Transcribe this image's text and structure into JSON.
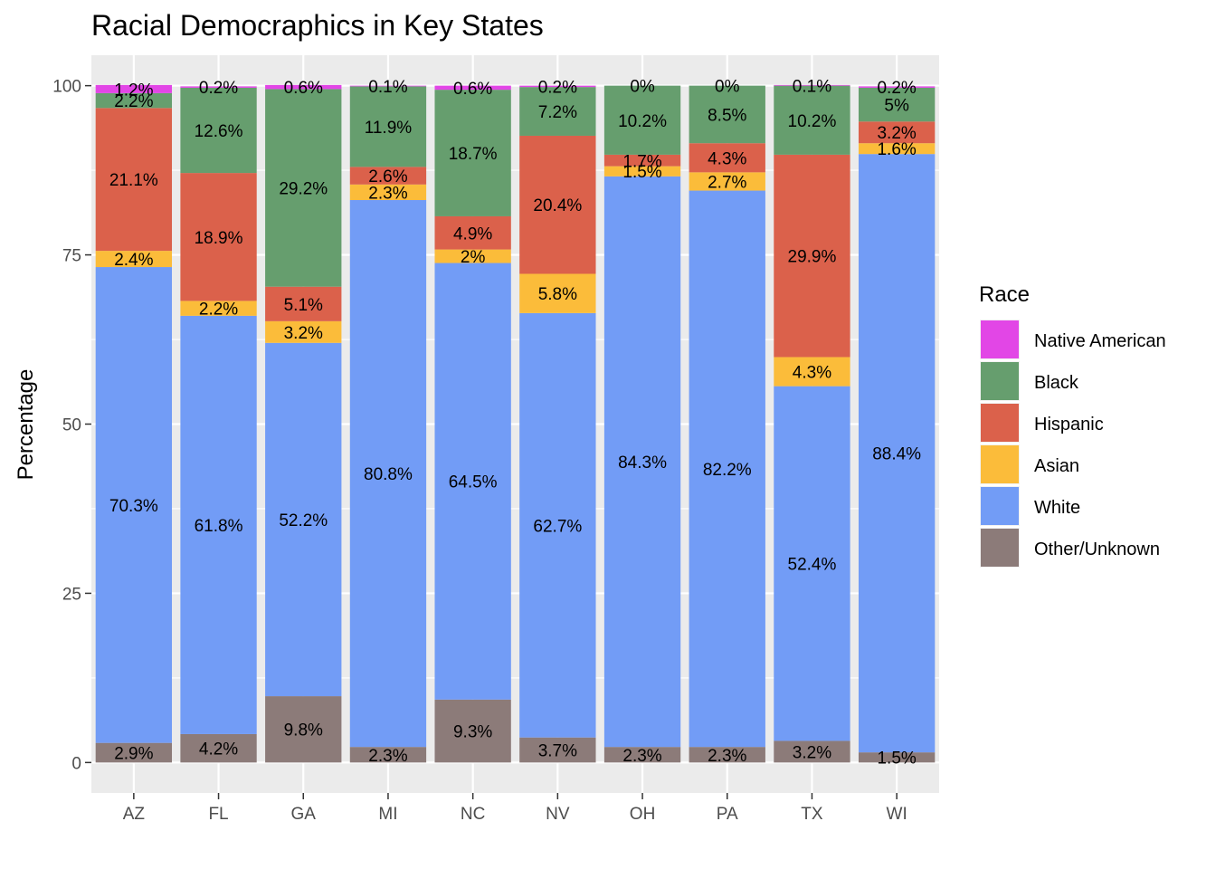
{
  "chart_data": {
    "type": "bar",
    "stacked": true,
    "title": "Racial Democraphics in Key States",
    "xlabel": "",
    "ylabel": "Percentage",
    "ylim": [
      -4.5,
      104.5
    ],
    "yticks": [
      0,
      25,
      50,
      75,
      100
    ],
    "grid": true,
    "legend_position": "right",
    "legend_title": "Race",
    "categories": [
      "AZ",
      "FL",
      "GA",
      "MI",
      "NC",
      "NV",
      "OH",
      "PA",
      "TX",
      "WI"
    ],
    "series": [
      {
        "name": "Other/Unknown",
        "color": "#8c7b79",
        "values": [
          2.9,
          4.2,
          9.8,
          2.3,
          9.3,
          3.7,
          2.3,
          2.3,
          3.2,
          1.5
        ],
        "labels": [
          "2.9%",
          "4.2%",
          "9.8%",
          "2.3%",
          "9.3%",
          "3.7%",
          "2.3%",
          "2.3%",
          "3.2%",
          "1.5%"
        ]
      },
      {
        "name": "White",
        "color": "#729cf6",
        "values": [
          70.3,
          61.8,
          52.2,
          80.8,
          64.5,
          62.7,
          84.3,
          82.2,
          52.4,
          88.4
        ],
        "labels": [
          "70.3%",
          "61.8%",
          "52.2%",
          "80.8%",
          "64.5%",
          "62.7%",
          "84.3%",
          "82.2%",
          "52.4%",
          "88.4%"
        ]
      },
      {
        "name": "Asian",
        "color": "#fbbc3a",
        "values": [
          2.4,
          2.2,
          3.2,
          2.3,
          2,
          5.8,
          1.5,
          2.7,
          4.3,
          1.6
        ],
        "labels": [
          "2.4%",
          "2.2%",
          "3.2%",
          "2.3%",
          "2%",
          "5.8%",
          "1.5%",
          "2.7%",
          "4.3%",
          "1.6%"
        ]
      },
      {
        "name": "Hispanic",
        "color": "#db614b",
        "values": [
          21.1,
          18.9,
          5.1,
          2.6,
          4.9,
          20.4,
          1.7,
          4.3,
          29.9,
          3.2
        ],
        "labels": [
          "21.1%",
          "18.9%",
          "5.1%",
          "2.6%",
          "4.9%",
          "20.4%",
          "1.7%",
          "4.3%",
          "29.9%",
          "3.2%"
        ]
      },
      {
        "name": "Black",
        "color": "#669e6e",
        "values": [
          2.2,
          12.6,
          29.2,
          11.9,
          18.7,
          7.2,
          10.2,
          8.5,
          10.2,
          5
        ],
        "labels": [
          "2.2%",
          "12.6%",
          "29.2%",
          "11.9%",
          "18.7%",
          "7.2%",
          "10.2%",
          "8.5%",
          "10.2%",
          "5%"
        ]
      },
      {
        "name": "Native American",
        "color": "#e246e6",
        "values": [
          1.2,
          0.2,
          0.6,
          0.1,
          0.6,
          0.2,
          0,
          0,
          0.1,
          0.2
        ],
        "labels": [
          "1.2%",
          "0.2%",
          "0.6%",
          "0.1%",
          "0.6%",
          "0.2%",
          "0%",
          "0%",
          "0.1%",
          "0.2%"
        ]
      }
    ],
    "legend_order": [
      "Native American",
      "Black",
      "Hispanic",
      "Asian",
      "White",
      "Other/Unknown"
    ],
    "panel_background": "#ebebeb",
    "grid_color": "#ffffff"
  }
}
